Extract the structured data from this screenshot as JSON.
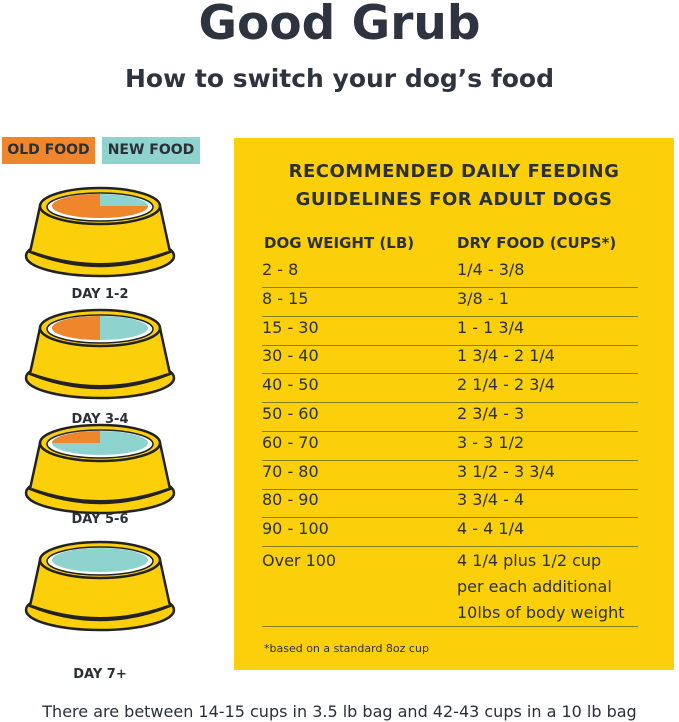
{
  "title": "Good Grub",
  "subtitle": "How to switch your dog’s food",
  "legend": {
    "old": "OLD FOOD",
    "new": "NEW FOOD"
  },
  "colors": {
    "old": "#f0862c",
    "new": "#8fd3cf",
    "bowl": "#fbd00b",
    "panel": "#fbd00b"
  },
  "bowls": [
    {
      "label": "DAY 1-2",
      "old_fraction": 0.75
    },
    {
      "label": "DAY 3-4",
      "old_fraction": 0.5
    },
    {
      "label": "DAY 5-6",
      "old_fraction": 0.25
    },
    {
      "label": "DAY 7+",
      "old_fraction": 0
    }
  ],
  "panel": {
    "heading1": "RECOMMENDED DAILY FEEDING",
    "heading2": "GUIDELINES FOR ADULT DOGS",
    "col1": "DOG WEIGHT (LB)",
    "col2": "DRY FOOD (CUPS*)",
    "rows": [
      [
        "2 - 8",
        "1/4 - 3/8"
      ],
      [
        "8 - 15",
        "3/8 - 1"
      ],
      [
        "15 - 30",
        "1 - 1 3/4"
      ],
      [
        "30 - 40",
        "1 3/4 - 2 1/4"
      ],
      [
        "40 - 50",
        "2 1/4 - 2 3/4"
      ],
      [
        "50 - 60",
        "2 3/4 - 3"
      ],
      [
        "60 - 70",
        "3 - 3 1/2"
      ],
      [
        "70 - 80",
        "3 1/2 - 3 3/4"
      ],
      [
        "80 - 90",
        "3 3/4 - 4"
      ],
      [
        "90 - 100",
        "4 - 4 1/4"
      ]
    ],
    "last_row": {
      "weight": "Over 100",
      "food": [
        "4 1/4 plus 1/2 cup",
        "per each additional",
        "10lbs of body weight"
      ]
    },
    "note": "*based on a standard 8oz cup"
  },
  "footer": "There are between 14-15 cups in 3.5 lb bag and 42-43 cups in a 10 lb bag"
}
